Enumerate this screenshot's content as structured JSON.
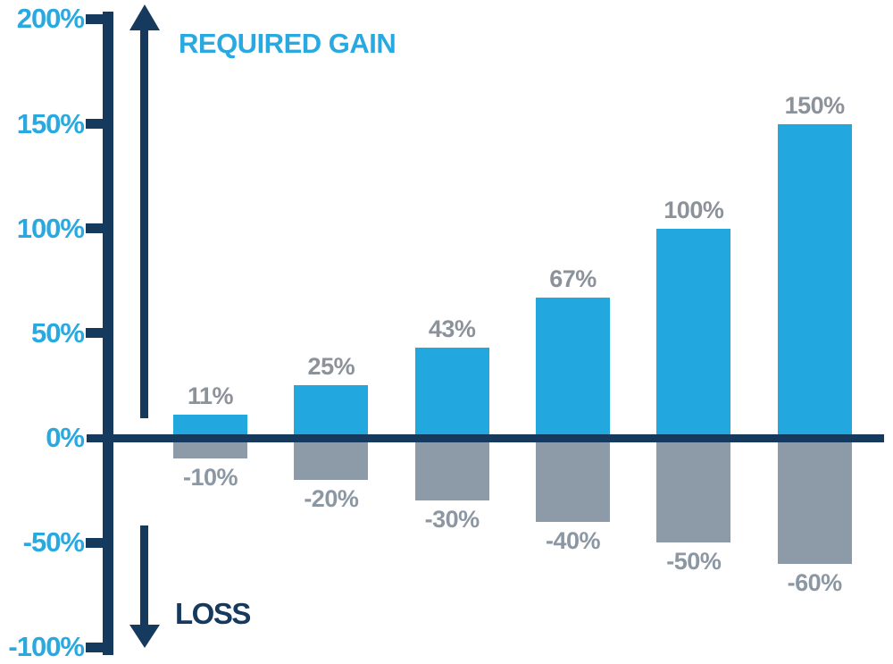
{
  "chart_data": {
    "type": "bar",
    "title": "",
    "categories": [
      "-10%",
      "-20%",
      "-30%",
      "-40%",
      "-50%",
      "-60%"
    ],
    "series": [
      {
        "name": "Loss",
        "values": [
          -10,
          -20,
          -30,
          -40,
          -50,
          -60
        ],
        "labels": [
          "-10%",
          "-20%",
          "-30%",
          "-40%",
          "-50%",
          "-60%"
        ],
        "color": "#8D9BA8",
        "label_color": "#8B97A3"
      },
      {
        "name": "Required gain",
        "values": [
          11,
          25,
          43,
          67,
          100,
          150
        ],
        "labels": [
          "11%",
          "25%",
          "43%",
          "67%",
          "100%",
          "150%"
        ],
        "color": "#23A7DF",
        "label_color": "#8C929A"
      }
    ],
    "y_axis": {
      "ticks": [
        {
          "label": "200%",
          "value": 200
        },
        {
          "label": "150%",
          "value": 150
        },
        {
          "label": "100%",
          "value": 100
        },
        {
          "label": "50%",
          "value": 50
        },
        {
          "label": "0%",
          "value": 0
        },
        {
          "label": "-50%",
          "value": -50
        },
        {
          "label": "-100%",
          "value": -100
        }
      ],
      "ylim": [
        -100,
        200
      ],
      "label_color": "#2AA9E0"
    },
    "annotations": {
      "gain_label": "REQUIRED GAIN",
      "loss_label": "LOSS"
    },
    "axis_color": "#163A5E",
    "gridlines": false,
    "legend": "none"
  }
}
